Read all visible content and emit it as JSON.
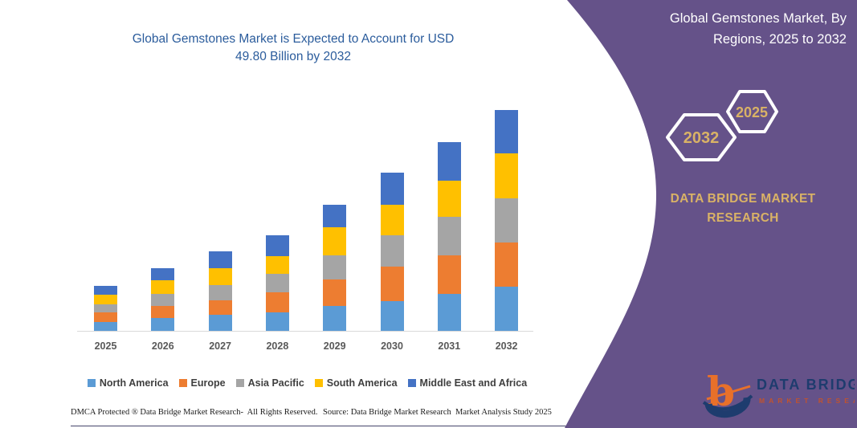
{
  "colors": {
    "panel_purple": "#655289",
    "gold": "#d9b266",
    "title_blue": "#2b5c9c",
    "axis_gray": "#595959",
    "baseline_gray": "#d9d9d9"
  },
  "chart": {
    "title_line1": "Global Gemstones Market is Expected to Account for USD",
    "title_line2": "49.80 Billion by 2032"
  },
  "chart_data": {
    "type": "bar",
    "stacked": true,
    "title": "Global Gemstones Market is Expected to Account for USD 49.80 Billion by 2032",
    "unit": "USD Billion",
    "categories": [
      "2025",
      "2026",
      "2027",
      "2028",
      "2029",
      "2030",
      "2031",
      "2032"
    ],
    "series": [
      {
        "name": "North America",
        "color": "#5B9BD5",
        "values": [
          2.0,
          2.9,
          3.6,
          4.1,
          5.7,
          6.7,
          8.4,
          9.9
        ]
      },
      {
        "name": "Europe",
        "color": "#ED7D31",
        "values": [
          2.1,
          2.8,
          3.3,
          4.6,
          5.9,
          7.7,
          8.7,
          10.0
        ]
      },
      {
        "name": "Asia Pacific",
        "color": "#A5A5A5",
        "values": [
          1.9,
          2.6,
          3.4,
          4.2,
          5.5,
          7.2,
          8.6,
          10.0
        ]
      },
      {
        "name": "South America",
        "color": "#FFC000",
        "values": [
          2.1,
          3.1,
          3.8,
          4.0,
          6.3,
          6.8,
          8.2,
          10.1
        ]
      },
      {
        "name": "Middle East and Africa",
        "color": "#4472C4",
        "values": [
          2.1,
          2.7,
          3.9,
          4.6,
          5.0,
          7.2,
          8.7,
          9.8
        ]
      }
    ],
    "totals": [
      10.2,
      14.1,
      18.0,
      21.5,
      28.4,
      35.6,
      42.6,
      49.8
    ],
    "xlabel": "",
    "ylabel": "",
    "ylim": [
      0,
      53
    ],
    "grid": false,
    "legend_position": "bottom"
  },
  "side_panel": {
    "title_line1": "Global Gemstones Market, By",
    "title_line2": "Regions, 2025 to 2032",
    "hexagon_left_year": "2032",
    "hexagon_right_year": "2025",
    "brand_line1": "DATA BRIDGE MARKET",
    "brand_line2": "RESEARCH"
  },
  "logo": {
    "glyph": "b",
    "text_main": "DATA BRIDGE",
    "text_sub": "MARKET RESEARCH"
  },
  "footer": {
    "left": "DMCA Protected ® Data Bridge Market Research-  All Rights Reserved.",
    "source": "Source: Data Bridge Market Research  Market Analysis Study 2025"
  }
}
